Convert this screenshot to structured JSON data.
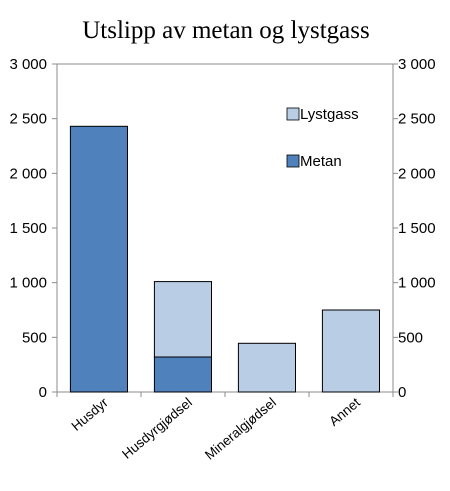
{
  "chart_data": {
    "type": "bar",
    "stacked": true,
    "title": "Utslipp av metan og lystgass",
    "categories": [
      "Husdyr",
      "Husdyrgjødsel",
      "Mineralgjødsel",
      "Annet"
    ],
    "series": [
      {
        "name": "Metan",
        "values": [
          2430,
          320,
          0,
          0
        ],
        "color": "#4f81bd"
      },
      {
        "name": "Lystgass",
        "values": [
          0,
          690,
          445,
          750
        ],
        "color": "#b9cde5"
      }
    ],
    "ylim": [
      0,
      3000
    ],
    "yticks": [
      0,
      500,
      1000,
      1500,
      2000,
      2500,
      3000
    ],
    "ytick_labels": [
      "0",
      "500",
      "1 000",
      "1 500",
      "2 000",
      "2 500",
      "3 000"
    ],
    "secondary_y_axis": true,
    "grid": false,
    "legend_position": "top-right",
    "legend_order": [
      "Lystgass",
      "Metan"
    ]
  }
}
